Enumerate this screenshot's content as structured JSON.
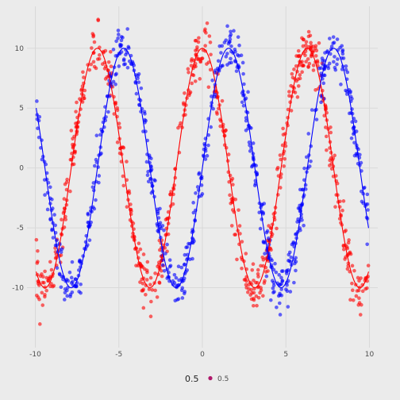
{
  "chart_data": {
    "type": "scatter",
    "title": "",
    "xlabel": "",
    "ylabel": "",
    "xlim": [
      -10.5,
      10.5
    ],
    "ylim": [
      -15,
      13.5
    ],
    "x_ticks": [
      -10,
      -5,
      0,
      5,
      10
    ],
    "x_tick_labels": [
      "-10",
      "-5",
      "0",
      "5",
      "10"
    ],
    "y_ticks": [
      -10,
      -5,
      0,
      5,
      10
    ],
    "y_tick_labels": [
      "-10",
      "-5",
      "0",
      "5",
      "10"
    ],
    "grid": true,
    "background": "#ebebeb",
    "gridline_color": "#d9d9d9",
    "legend": {
      "position": "bottom",
      "title": "0.5",
      "entries": [
        {
          "label": "0.5",
          "color": "#b0186b"
        }
      ]
    },
    "series": [
      {
        "color": "#ff0000",
        "function": "10*cos(x)",
        "x_range": [
          -9.95,
          9.95
        ],
        "n_points": 690,
        "noise_sd": 1.0,
        "curve": [
          {
            "x": -10,
            "y": -8.39
          },
          {
            "x": -9,
            "y": -9.11
          },
          {
            "x": -8,
            "y": -1.46
          },
          {
            "x": -7,
            "y": 7.54
          },
          {
            "x": -6,
            "y": 9.6
          },
          {
            "x": -5,
            "y": 2.84
          },
          {
            "x": -4,
            "y": -6.54
          },
          {
            "x": -3,
            "y": -9.9
          },
          {
            "x": -2,
            "y": -4.16
          },
          {
            "x": -1,
            "y": 5.4
          },
          {
            "x": 0,
            "y": 10.0
          },
          {
            "x": 1,
            "y": 5.4
          },
          {
            "x": 2,
            "y": -4.16
          },
          {
            "x": 3,
            "y": -9.9
          },
          {
            "x": 4,
            "y": -6.54
          },
          {
            "x": 5,
            "y": 2.84
          },
          {
            "x": 6,
            "y": 9.6
          },
          {
            "x": 7,
            "y": 7.54
          },
          {
            "x": 8,
            "y": -1.46
          },
          {
            "x": 9,
            "y": -9.11
          },
          {
            "x": 10,
            "y": -8.39
          }
        ]
      },
      {
        "color": "#0000ff",
        "function": "10*sin(x)",
        "x_range": [
          -9.95,
          9.95
        ],
        "n_points": 690,
        "noise_sd": 1.0,
        "curve": [
          {
            "x": -10,
            "y": 5.44
          },
          {
            "x": -9,
            "y": -4.12
          },
          {
            "x": -8,
            "y": -9.89
          },
          {
            "x": -7,
            "y": -6.57
          },
          {
            "x": -6,
            "y": 2.79
          },
          {
            "x": -5,
            "y": 9.59
          },
          {
            "x": -4,
            "y": 7.57
          },
          {
            "x": -3,
            "y": -1.41
          },
          {
            "x": -2,
            "y": -9.09
          },
          {
            "x": -1,
            "y": -8.41
          },
          {
            "x": 0,
            "y": 0.0
          },
          {
            "x": 1,
            "y": 8.41
          },
          {
            "x": 2,
            "y": 9.09
          },
          {
            "x": 3,
            "y": 1.41
          },
          {
            "x": 4,
            "y": -7.57
          },
          {
            "x": 5,
            "y": -9.59
          },
          {
            "x": 6,
            "y": -2.79
          },
          {
            "x": 7,
            "y": 6.57
          },
          {
            "x": 8,
            "y": 9.89
          },
          {
            "x": 9,
            "y": 4.12
          },
          {
            "x": 10,
            "y": -5.44
          }
        ]
      }
    ]
  }
}
